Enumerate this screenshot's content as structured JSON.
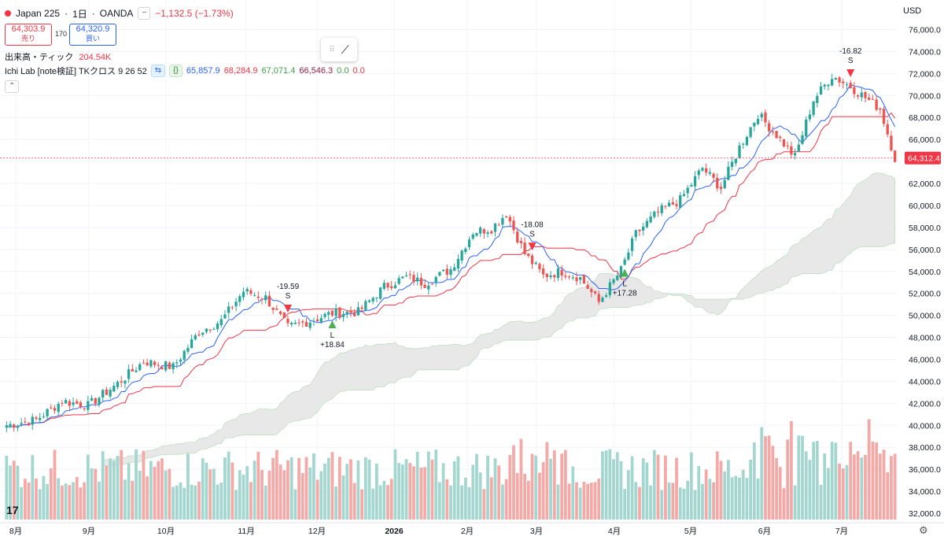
{
  "header": {
    "symbol": "Japan 225",
    "separator1": "·",
    "interval": "1日",
    "separator2": "·",
    "broker": "OANDA",
    "change": "−1,132.5 (−1.73%)",
    "sell_price": "64,303.9",
    "sell_label": "売り",
    "spread": "170",
    "buy_price": "64,320.9",
    "buy_label": "買い",
    "volume_label": "出来高・ティック",
    "volume_value": "204.54K",
    "indicator_name": "Ichi Lab [note検証] TKクロス 9 26 52",
    "indicator_values": [
      "65,857.9",
      "68,284.9",
      "67,071.4",
      "66,546.3",
      "0.0",
      "0.0"
    ],
    "collapse_icon": "chevron-up-icon",
    "currency": "USD"
  },
  "colors": {
    "up": "#26a69a",
    "down": "#ef5350",
    "tenkan": "#2962ff",
    "kijun": "#f23645",
    "cloud": "#e6e6e6",
    "cloud_edge": "#a5d6a7",
    "last_price_bg": "#f23645",
    "volume_up": "#a3d6cf",
    "volume_down": "#f5a9a6",
    "signal_long": "#4caf50",
    "signal_short": "#f23645"
  },
  "chart_data": {
    "type": "candlestick",
    "title": "Japan 225 · 1日 · OANDA",
    "y_axis": {
      "ticks": [
        "76,000.0",
        "74,000.0",
        "72,000.0",
        "70,000.0",
        "68,000.0",
        "66,000.0",
        "62,000.0",
        "60,000.0",
        "58,000.0",
        "56,000.0",
        "54,000.0",
        "52,000.0",
        "50,000.0",
        "48,000.0",
        "46,000.0",
        "44,000.0",
        "42,000.0",
        "40,000.0",
        "38,000.0",
        "36,000.0",
        "34,000.0",
        "32,000.0"
      ],
      "range": [
        31500,
        77000
      ],
      "grid": true
    },
    "x_axis": {
      "labels": [
        "8月",
        "9月",
        "10月",
        "11月",
        "12月",
        "2026",
        "2月",
        "3月",
        "4月",
        "5月",
        "6月",
        "7月"
      ]
    },
    "last_price": "64,312.4",
    "series": [
      {
        "name": "price",
        "type": "candlestick"
      },
      {
        "name": "tenkan",
        "type": "line"
      },
      {
        "name": "kijun",
        "type": "line"
      },
      {
        "name": "cloud",
        "type": "area"
      },
      {
        "name": "volume",
        "type": "bar"
      }
    ],
    "anchors": [
      [
        0,
        40000
      ],
      [
        8,
        40500
      ],
      [
        15,
        42200
      ],
      [
        22,
        41800
      ],
      [
        30,
        43800
      ],
      [
        37,
        45800
      ],
      [
        45,
        45300
      ],
      [
        52,
        48500
      ],
      [
        58,
        49500
      ],
      [
        64,
        52200
      ],
      [
        70,
        51600
      ],
      [
        76,
        48900
      ],
      [
        82,
        49500
      ],
      [
        88,
        50200
      ],
      [
        95,
        50300
      ],
      [
        102,
        52600
      ],
      [
        108,
        53500
      ],
      [
        113,
        52900
      ],
      [
        120,
        54200
      ],
      [
        126,
        57600
      ],
      [
        131,
        57900
      ],
      [
        135,
        59300
      ],
      [
        140,
        55600
      ],
      [
        145,
        53600
      ],
      [
        150,
        54000
      ],
      [
        155,
        53400
      ],
      [
        160,
        51200
      ],
      [
        166,
        54100
      ],
      [
        170,
        57400
      ],
      [
        176,
        59400
      ],
      [
        182,
        60500
      ],
      [
        188,
        63400
      ],
      [
        193,
        61600
      ],
      [
        198,
        65300
      ],
      [
        203,
        68300
      ],
      [
        208,
        66400
      ],
      [
        213,
        64400
      ],
      [
        218,
        69600
      ],
      [
        223,
        71800
      ],
      [
        228,
        70800
      ],
      [
        232,
        69800
      ],
      [
        236,
        68800
      ],
      [
        240,
        64300
      ]
    ],
    "signals": [
      {
        "type": "S",
        "value": "-19.59",
        "bar": 76
      },
      {
        "type": "L",
        "value": "+18.84",
        "bar": 88
      },
      {
        "type": "S",
        "value": "-18.08",
        "bar": 142
      },
      {
        "type": "L",
        "value": "+17.28",
        "bar": 167
      },
      {
        "type": "S",
        "value": "-16.82",
        "bar": 228
      }
    ]
  }
}
